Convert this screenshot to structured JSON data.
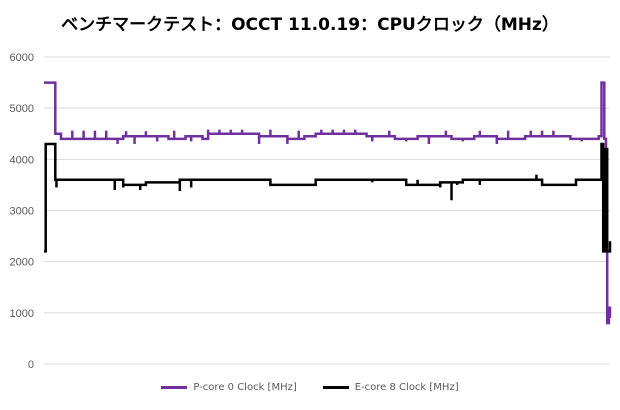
{
  "chart_data": {
    "type": "line",
    "title": "ベンチマークテスト：OCCT 11.0.19：CPUクロック（MHz）",
    "xlabel": "",
    "ylabel": "",
    "ylim": [
      0,
      6000
    ],
    "yticks": [
      0,
      1000,
      2000,
      3000,
      4000,
      5000,
      6000
    ],
    "grid": true,
    "legend_position": "bottom",
    "x_range": [
      0,
      100
    ],
    "series": [
      {
        "name": "P-core 0 Clock [MHz]",
        "color": "#7030a0",
        "points": [
          [
            0,
            5500
          ],
          [
            2,
            5500
          ],
          [
            2,
            4500
          ],
          [
            3,
            4500
          ],
          [
            3,
            4400
          ],
          [
            12,
            4400
          ],
          [
            14,
            4450
          ],
          [
            22,
            4400
          ],
          [
            25,
            4450
          ],
          [
            28,
            4400
          ],
          [
            29,
            4500
          ],
          [
            37,
            4500
          ],
          [
            38,
            4450
          ],
          [
            43,
            4400
          ],
          [
            46,
            4450
          ],
          [
            48,
            4500
          ],
          [
            55,
            4500
          ],
          [
            57,
            4450
          ],
          [
            62,
            4400
          ],
          [
            66,
            4450
          ],
          [
            72,
            4400
          ],
          [
            76,
            4450
          ],
          [
            80,
            4400
          ],
          [
            85,
            4450
          ],
          [
            93,
            4400
          ],
          [
            98,
            4450
          ],
          [
            98.5,
            5500
          ],
          [
            99,
            4400
          ],
          [
            99.3,
            2300
          ],
          [
            99.5,
            800
          ],
          [
            99.8,
            1100
          ],
          [
            100,
            900
          ]
        ],
        "spikes": [
          [
            5,
            4560
          ],
          [
            7,
            4560
          ],
          [
            9,
            4560
          ],
          [
            11,
            4560
          ],
          [
            13,
            4300
          ],
          [
            14.5,
            4550
          ],
          [
            16,
            4300
          ],
          [
            18,
            4550
          ],
          [
            20,
            4350
          ],
          [
            23,
            4560
          ],
          [
            26,
            4350
          ],
          [
            29,
            4580
          ],
          [
            31,
            4580
          ],
          [
            33,
            4580
          ],
          [
            35,
            4580
          ],
          [
            38,
            4300
          ],
          [
            40,
            4580
          ],
          [
            43,
            4300
          ],
          [
            45,
            4560
          ],
          [
            49,
            4580
          ],
          [
            51,
            4580
          ],
          [
            53,
            4580
          ],
          [
            55,
            4580
          ],
          [
            58,
            4350
          ],
          [
            61,
            4560
          ],
          [
            64,
            4350
          ],
          [
            68,
            4300
          ],
          [
            71,
            4560
          ],
          [
            74,
            4350
          ],
          [
            77,
            4560
          ],
          [
            80,
            4300
          ],
          [
            82,
            4560
          ],
          [
            86,
            4560
          ],
          [
            88,
            4560
          ],
          [
            90,
            4560
          ],
          [
            95,
            4350
          ]
        ]
      },
      {
        "name": "E-core 8 Clock [MHz]",
        "color": "#000000",
        "points": [
          [
            0,
            2200
          ],
          [
            0.3,
            4300
          ],
          [
            2,
            4300
          ],
          [
            2,
            3600
          ],
          [
            13,
            3600
          ],
          [
            14,
            3500
          ],
          [
            18,
            3550
          ],
          [
            24,
            3600
          ],
          [
            38,
            3600
          ],
          [
            40,
            3500
          ],
          [
            48,
            3600
          ],
          [
            62,
            3600
          ],
          [
            64,
            3500
          ],
          [
            70,
            3550
          ],
          [
            74,
            3600
          ],
          [
            86,
            3600
          ],
          [
            88,
            3500
          ],
          [
            94,
            3600
          ],
          [
            98,
            3600
          ],
          [
            98.5,
            4300
          ],
          [
            98.8,
            2200
          ],
          [
            99.2,
            4200
          ],
          [
            99.5,
            2200
          ],
          [
            100,
            2400
          ]
        ],
        "spikes": [
          [
            2.2,
            3450
          ],
          [
            12.5,
            3400
          ],
          [
            14,
            3450
          ],
          [
            17,
            3400
          ],
          [
            24,
            3380
          ],
          [
            26,
            3450
          ],
          [
            42,
            3500
          ],
          [
            58,
            3550
          ],
          [
            66,
            3600
          ],
          [
            70,
            3450
          ],
          [
            72,
            3200
          ],
          [
            73,
            3500
          ],
          [
            77,
            3500
          ],
          [
            87,
            3700
          ],
          [
            92,
            3500
          ]
        ]
      }
    ]
  }
}
